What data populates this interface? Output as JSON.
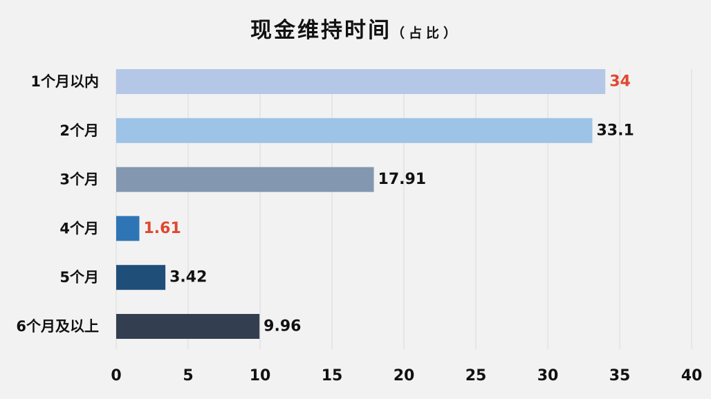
{
  "chart_data": {
    "type": "bar",
    "orientation": "horizontal",
    "title": "现金维持时间",
    "subtitle": "（占比）",
    "categories": [
      "1个月以内",
      "2个月",
      "3个月",
      "4个月",
      "5个月",
      "6个月及以上"
    ],
    "values": [
      34,
      33.1,
      17.91,
      1.61,
      3.42,
      9.96
    ],
    "value_labels": [
      "34",
      "33.1",
      "17.91",
      "1.61",
      "3.42",
      "9.96"
    ],
    "bar_colors": [
      "#b4c7e7",
      "#9dc3e6",
      "#8497b0",
      "#2e75b6",
      "#1f4e79",
      "#333f50"
    ],
    "label_colors": [
      "#e0472f",
      "#111111",
      "#111111",
      "#e0472f",
      "#111111",
      "#111111"
    ],
    "xlim": [
      0,
      40
    ],
    "xticks": [
      "0",
      "5",
      "10",
      "15",
      "20",
      "25",
      "30",
      "35",
      "40"
    ],
    "grid": true,
    "legend": false
  }
}
